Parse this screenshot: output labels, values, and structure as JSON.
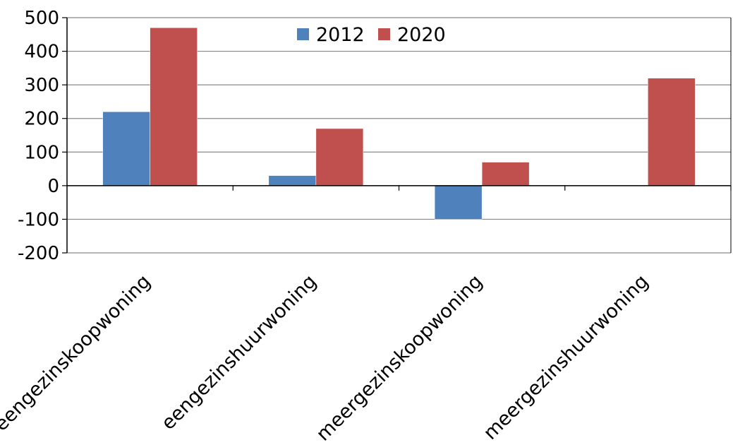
{
  "chart_data": {
    "type": "bar",
    "title": "",
    "xlabel": "",
    "ylabel": "",
    "categories": [
      "eengezinskoopwoning",
      "eengezinshuurwoning",
      "meergezinskoopwoning",
      "meergezinshuurwoning"
    ],
    "series": [
      {
        "name": "2012",
        "values": [
          220,
          30,
          -100,
          0
        ],
        "color": "#4F81BD"
      },
      {
        "name": "2020",
        "values": [
          470,
          170,
          70,
          320
        ],
        "color": "#C0504D"
      }
    ],
    "ylim": [
      -200,
      500
    ],
    "yticks": [
      500,
      400,
      300,
      200,
      100,
      0,
      -100,
      -200
    ],
    "ytick_labels": [
      "500",
      "400",
      "300",
      "200",
      "100",
      "0",
      "-100",
      "-200"
    ],
    "grid": true,
    "legend_position": "top-center"
  }
}
